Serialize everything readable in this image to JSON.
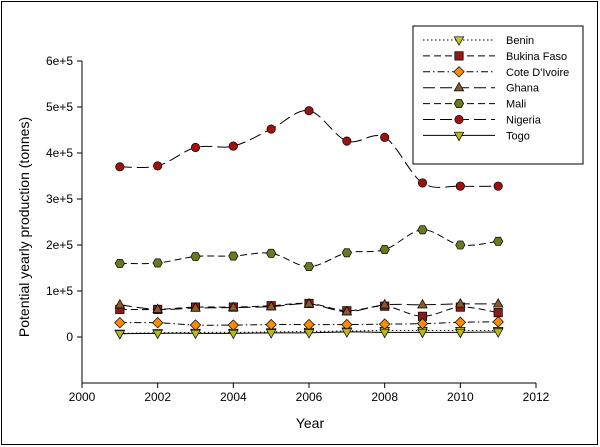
{
  "chart_data": {
    "type": "line",
    "xlabel": "Year",
    "ylabel": "Potential yearly production (tonnes)",
    "xlim": [
      2000,
      2012
    ],
    "ylim": [
      -100000,
      600000
    ],
    "x_ticks": [
      2000,
      2002,
      2004,
      2006,
      2008,
      2010,
      2012
    ],
    "x_tick_labels": [
      "2000",
      "2002",
      "2004",
      "2006",
      "2008",
      "2010",
      "2012"
    ],
    "y_ticks": [
      0,
      100000,
      200000,
      300000,
      400000,
      500000,
      600000
    ],
    "y_tick_labels": [
      "0",
      "1e+5",
      "2e+5",
      "3e+5",
      "4e+5",
      "5e+5",
      "6e+5"
    ],
    "grid": false,
    "legend_position": "top-right",
    "x": [
      2001,
      2002,
      2003,
      2004,
      2005,
      2006,
      2007,
      2008,
      2009,
      2010,
      2011
    ],
    "series": [
      {
        "name": "Benin",
        "marker": "triangle-down",
        "color": "#c8c820",
        "line": "dotted",
        "values": [
          8000,
          9000,
          10000,
          10000,
          11000,
          12000,
          13000,
          14000,
          14000,
          14000,
          14000
        ]
      },
      {
        "name": "Bukina Faso",
        "marker": "square",
        "color": "#8b1a1a",
        "line": "dashed",
        "values": [
          60000,
          60000,
          65000,
          65000,
          68000,
          73000,
          57000,
          67000,
          45000,
          65000,
          53000
        ]
      },
      {
        "name": "Cote D'Ivoire",
        "marker": "diamond",
        "color": "#ff8c00",
        "line": "dashdot",
        "values": [
          31000,
          31000,
          26000,
          26000,
          27000,
          27000,
          27000,
          28000,
          29000,
          32000,
          33000
        ]
      },
      {
        "name": "Ghana",
        "marker": "triangle-up",
        "color": "#8b5a2b",
        "line": "longdash",
        "values": [
          70000,
          60000,
          63000,
          64000,
          66000,
          72000,
          55000,
          70000,
          70000,
          72000,
          72000
        ]
      },
      {
        "name": "Mali",
        "marker": "hexagon",
        "color": "#6b7a1e",
        "line": "dashed",
        "values": [
          160000,
          161000,
          175000,
          176000,
          182000,
          153000,
          183000,
          190000,
          233000,
          200000,
          208000
        ]
      },
      {
        "name": "Nigeria",
        "marker": "circle",
        "color": "#a01010",
        "line": "longdash",
        "values": [
          370000,
          372000,
          412000,
          415000,
          452000,
          492000,
          426000,
          434000,
          335000,
          328000,
          328000
        ]
      },
      {
        "name": "Togo",
        "marker": "triangle-down",
        "color": "#b8b820",
        "line": "solid",
        "values": [
          7000,
          8000,
          8000,
          8000,
          9000,
          9000,
          11000,
          10000,
          10000,
          10000,
          11000
        ]
      }
    ]
  }
}
